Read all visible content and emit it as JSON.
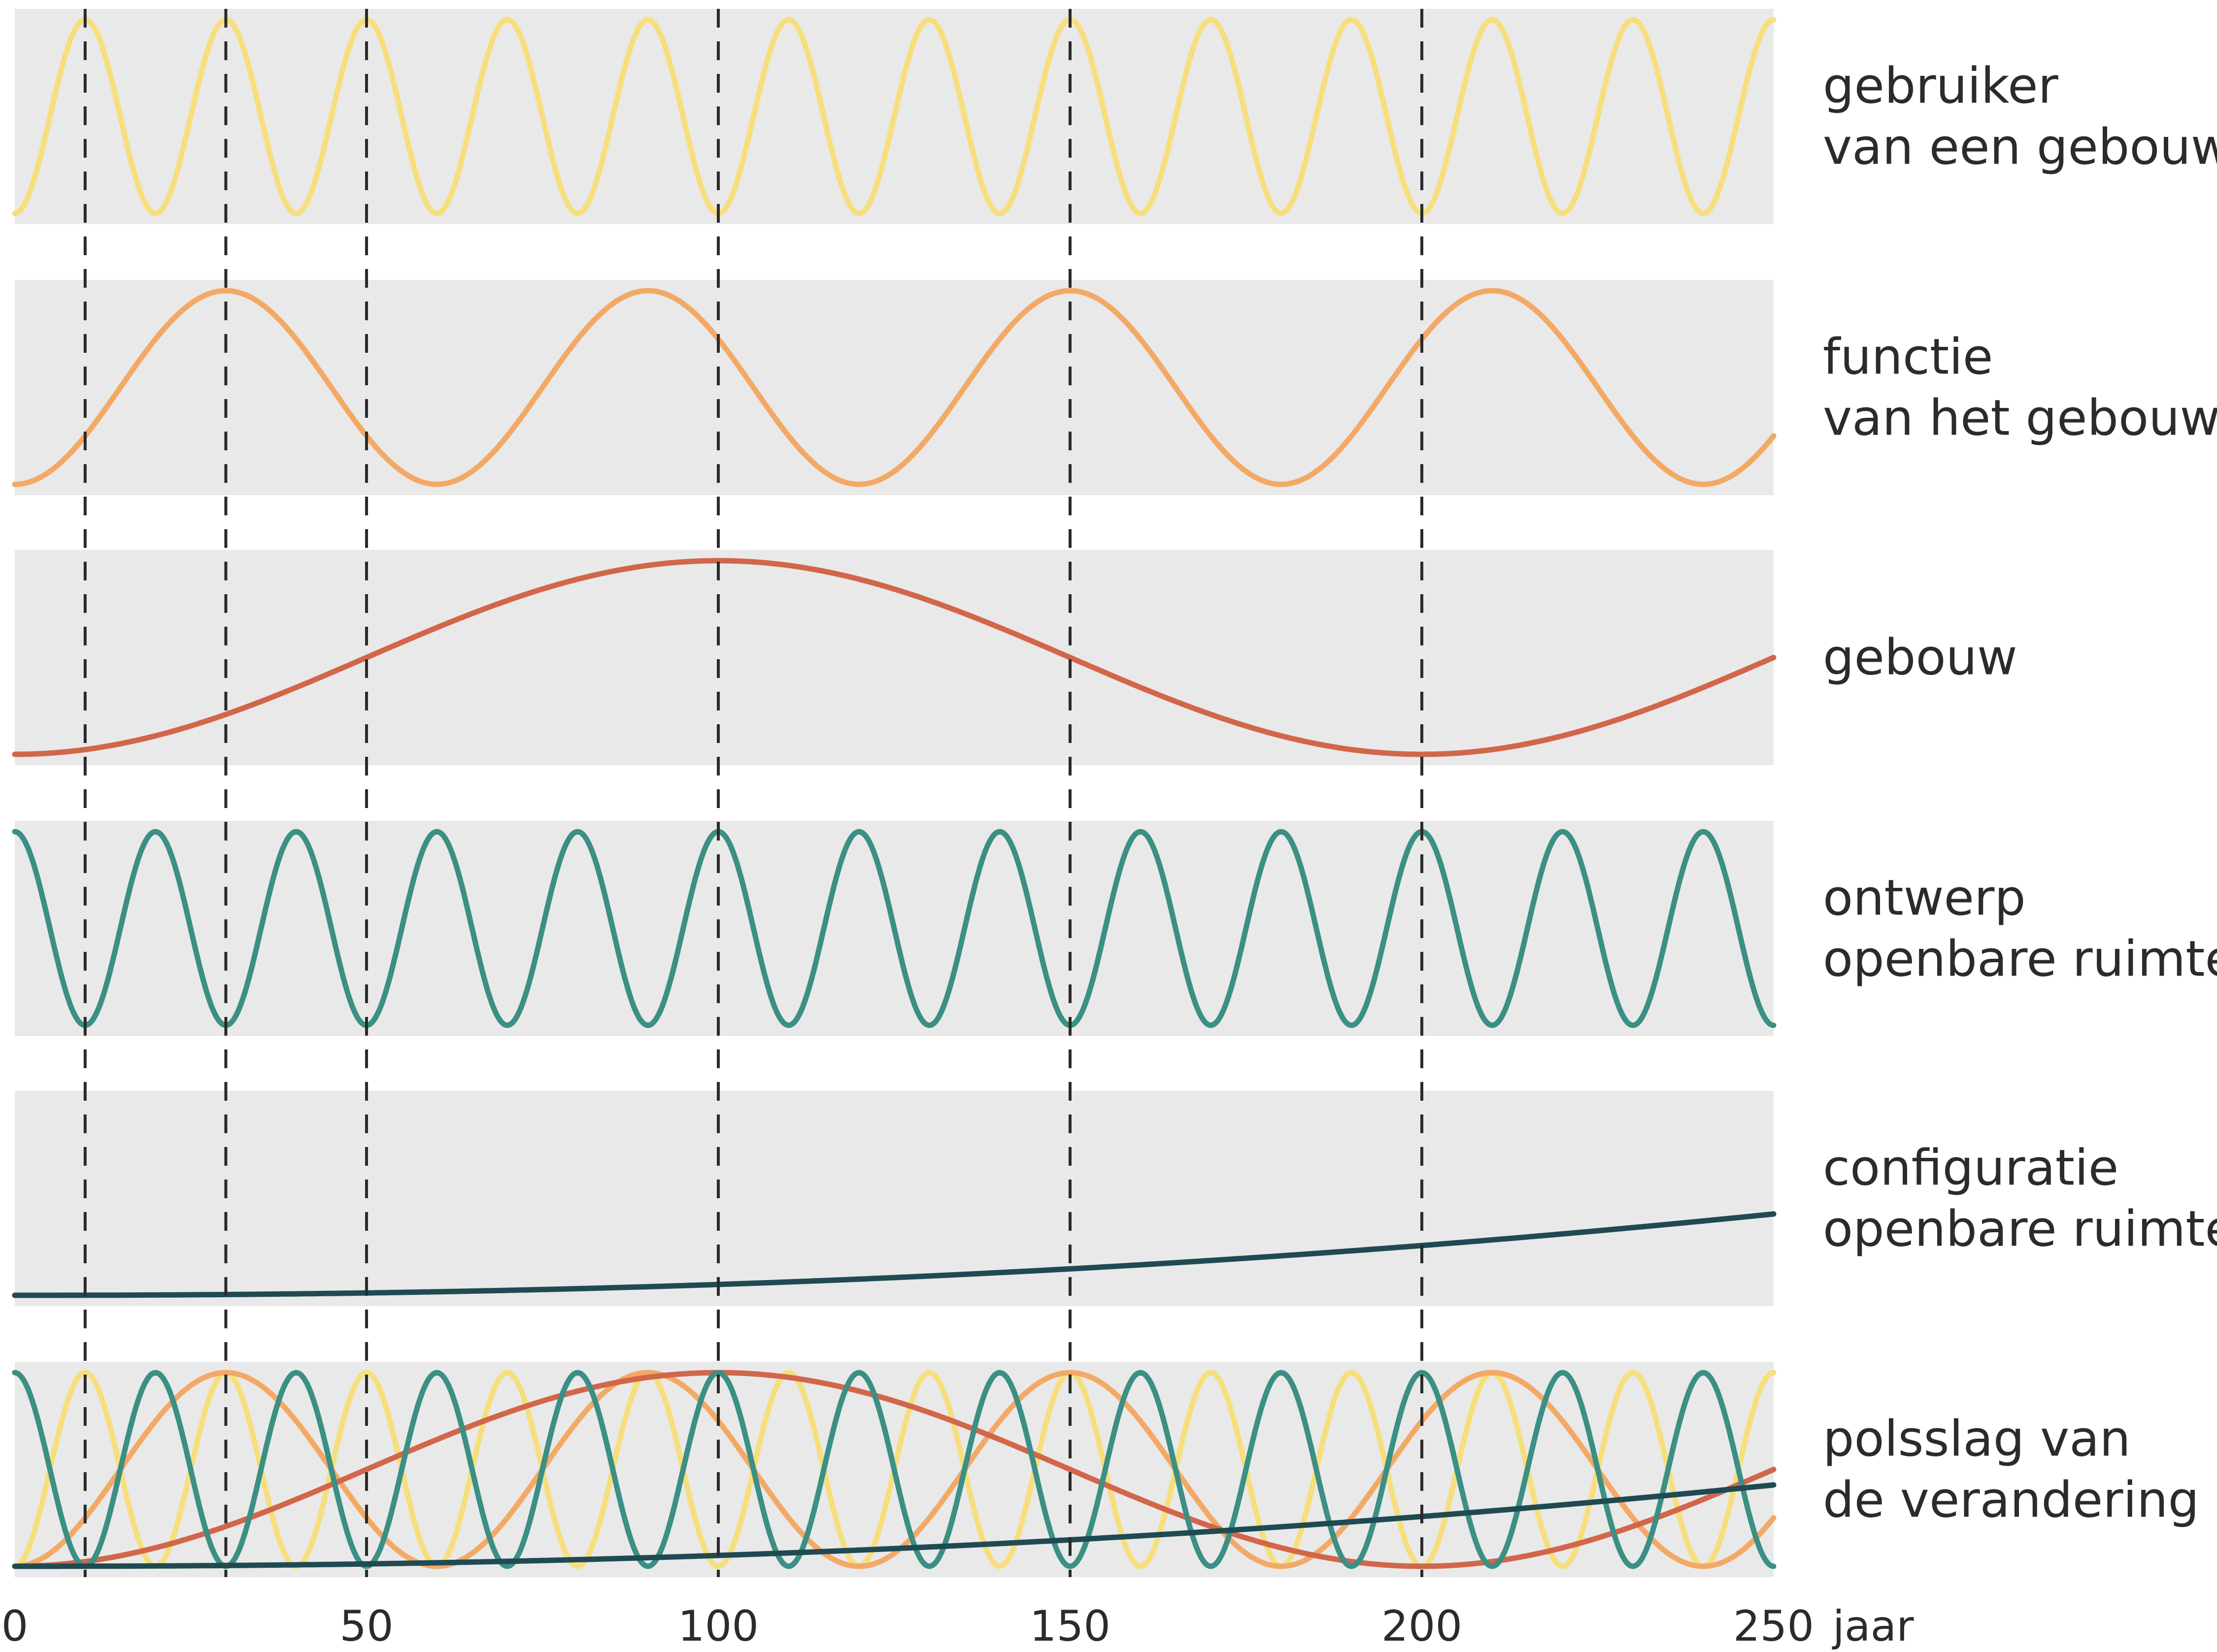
{
  "chart_data": {
    "type": "line",
    "x_unit": "jaar",
    "xlim": [
      0,
      250
    ],
    "x_ticks": [
      "0",
      "50",
      "100",
      "150",
      "200",
      "250"
    ],
    "markers_x": [
      10,
      30,
      50,
      100,
      150,
      200
    ],
    "colors": {
      "gebruiker": "#f6df7c",
      "functie": "#f3a966",
      "gebouw": "#d2664a",
      "ontwerp": "#3b8f84",
      "configuratie": "#1f4a52",
      "band": "#e9e9e9",
      "marker": "#2a2a2a"
    },
    "rows": [
      {
        "key": "gebruiker",
        "label": [
          "gebruiker",
          "van een gebouw"
        ],
        "pattern": "sine",
        "period_years": 20,
        "peak_x": 10
      },
      {
        "key": "functie",
        "label": [
          "functie",
          "van het gebouw"
        ],
        "pattern": "sine",
        "period_years": 60,
        "peak_x": 30
      },
      {
        "key": "gebouw",
        "label": [
          "gebouw"
        ],
        "pattern": "single wave",
        "peak_x": 100,
        "trough_x": 200
      },
      {
        "key": "ontwerp",
        "label": [
          "ontwerp",
          "openbare ruimte"
        ],
        "pattern": "sine",
        "period_years": 20,
        "trough_x": 10
      },
      {
        "key": "configuratie",
        "label": [
          "configuratie",
          "openbare ruimte"
        ],
        "pattern": "slow rising curve"
      },
      {
        "key": "polsslag",
        "label": [
          "polsslag van",
          "de verandering"
        ],
        "pattern": "all series combined"
      }
    ]
  }
}
